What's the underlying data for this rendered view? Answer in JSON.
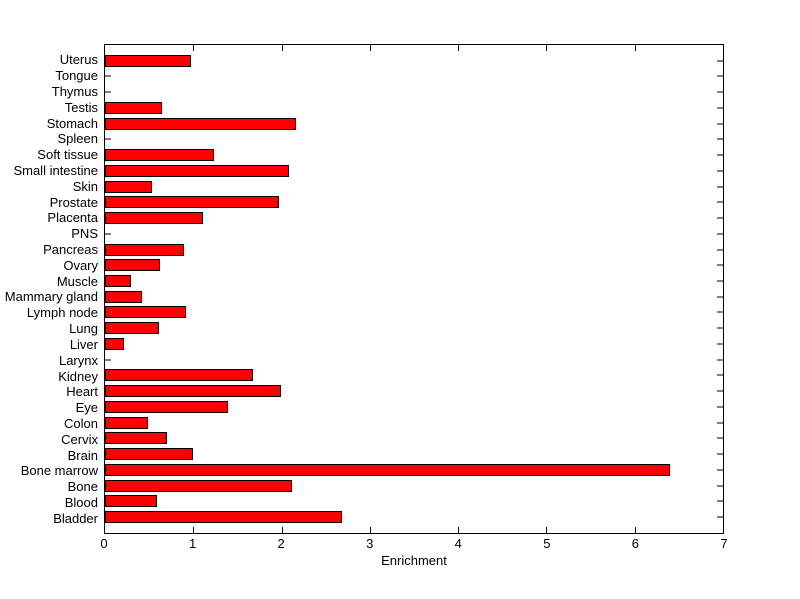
{
  "figure": {
    "background": "#FFFFFF"
  },
  "chart_data": {
    "type": "bar",
    "orientation": "horizontal",
    "title": "",
    "xlabel": "Enrichment",
    "ylabel": "",
    "xlim": [
      0,
      7
    ],
    "xtick_labels": [
      "0",
      "1",
      "2",
      "3",
      "4",
      "5",
      "6",
      "7"
    ],
    "grid": false,
    "legend": false,
    "bar_color": "#FF0000",
    "bar_edge_color": "#000000",
    "axis_color": "#000000",
    "categories": [
      "Uterus",
      "Tongue",
      "Thymus",
      "Testis",
      "Stomach",
      "Spleen",
      "Soft tissue",
      "Small intestine",
      "Skin",
      "Prostate",
      "Placenta",
      "PNS",
      "Pancreas",
      "Ovary",
      "Muscle",
      "Mammary gland",
      "Lymph node",
      "Lung",
      "Liver",
      "Larynx",
      "Kidney",
      "Heart",
      "Eye",
      "Colon",
      "Cervix",
      "Brain",
      "Bone marrow",
      "Bone",
      "Blood",
      "Bladder"
    ],
    "values": [
      0.97,
      0,
      0,
      0.64,
      2.16,
      0,
      1.23,
      2.08,
      0.53,
      1.97,
      1.11,
      0,
      0.89,
      0.62,
      0.29,
      0.42,
      0.92,
      0.61,
      0.22,
      0,
      1.68,
      1.99,
      1.39,
      0.49,
      0.7,
      1.0,
      6.4,
      2.12,
      0.59,
      2.68
    ]
  }
}
